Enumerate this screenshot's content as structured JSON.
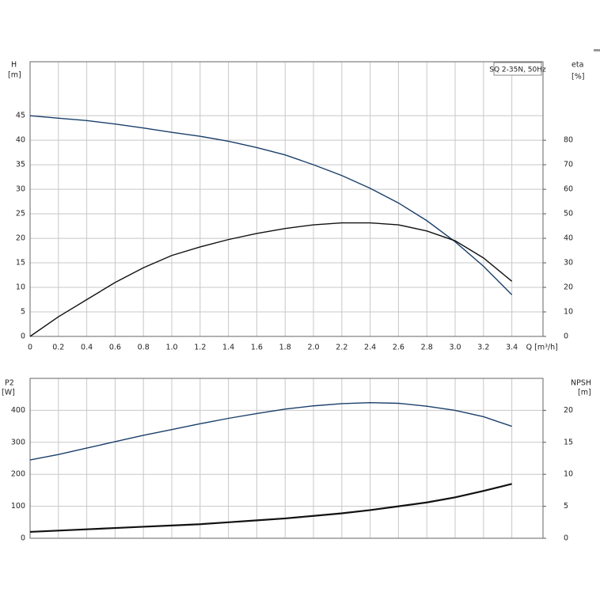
{
  "chart_data": [
    {
      "type": "line",
      "title": "SQ 2-35N, 50Hz",
      "ylabel": "H",
      "ylabel_unit": "[m]",
      "y2label": "eta",
      "y2label_unit": "[%]",
      "xlabel": "Q [m³/h]",
      "x": [
        0,
        0.2,
        0.4,
        0.6,
        0.8,
        1.0,
        1.2,
        1.4,
        1.6,
        1.8,
        2.0,
        2.2,
        2.4,
        2.6,
        2.8,
        3.0,
        3.2,
        3.4
      ],
      "series": [
        {
          "color": "#1b3f6b",
          "values": [
            45,
            44.5,
            44,
            43.3,
            42.5,
            41.6,
            40.8,
            39.8,
            38.5,
            37,
            35,
            32.8,
            30.2,
            27.2,
            23.6,
            19.3,
            14.3,
            8.5
          ]
        },
        {
          "color": "#111111",
          "axis": "y2",
          "values": [
            0,
            8,
            15,
            22,
            28,
            33,
            36.5,
            39.5,
            42,
            44,
            45.5,
            46.3,
            46.3,
            45.5,
            43,
            39,
            32,
            22.5
          ]
        }
      ],
      "xlim": [
        0,
        3.62
      ],
      "xticks": [
        0,
        0.2,
        0.4,
        0.6,
        0.8,
        {
          "value": 1.0,
          "label": "1.0"
        },
        1.2,
        1.4,
        1.6,
        1.8,
        {
          "value": 2.0,
          "label": "2.0"
        },
        2.2,
        2.4,
        2.6,
        2.8,
        {
          "value": 3.0,
          "label": "3.0"
        },
        3.2,
        3.4
      ],
      "ylim": [
        0,
        56
      ],
      "yticks": [
        0,
        5,
        10,
        15,
        20,
        25,
        30,
        35,
        40,
        45
      ],
      "y2lim": [
        0,
        112
      ],
      "y2ticks": [
        0,
        10,
        20,
        30,
        40,
        50,
        60,
        70,
        80
      ],
      "grid": true
    },
    {
      "type": "line",
      "ylabel": "P2",
      "ylabel_unit": "[W]",
      "y2label": "NPSH",
      "y2label_unit": "[m]",
      "x": [
        0,
        0.2,
        0.4,
        0.6,
        0.8,
        1.0,
        1.2,
        1.4,
        1.6,
        1.8,
        2.0,
        2.2,
        2.4,
        2.6,
        2.8,
        3.0,
        3.2,
        3.4
      ],
      "series": [
        {
          "color": "#1b3f6b",
          "values": [
            245,
            262,
            282,
            302,
            322,
            340,
            358,
            375,
            390,
            404,
            414,
            421,
            424,
            422,
            413,
            400,
            380,
            350
          ]
        },
        {
          "color": "#111111",
          "axis": "y2",
          "values": [
            1,
            1.2,
            1.4,
            1.6,
            1.8,
            2,
            2.2,
            2.5,
            2.8,
            3.1,
            3.5,
            3.9,
            4.4,
            5,
            5.6,
            6.4,
            7.4,
            8.5
          ]
        }
      ],
      "xlim": [
        0,
        3.62
      ],
      "xticks": [
        0,
        0.2,
        0.4,
        0.6,
        0.8,
        1.0,
        1.2,
        1.4,
        1.6,
        1.8,
        2.0,
        2.2,
        2.4,
        2.6,
        2.8,
        3.0,
        3.2,
        3.4
      ],
      "ylim": [
        0,
        500
      ],
      "yticks": [
        0,
        100,
        200,
        300,
        400
      ],
      "y2lim": [
        0,
        25
      ],
      "y2ticks": [
        0,
        5,
        10,
        15,
        20
      ],
      "grid": true
    }
  ]
}
